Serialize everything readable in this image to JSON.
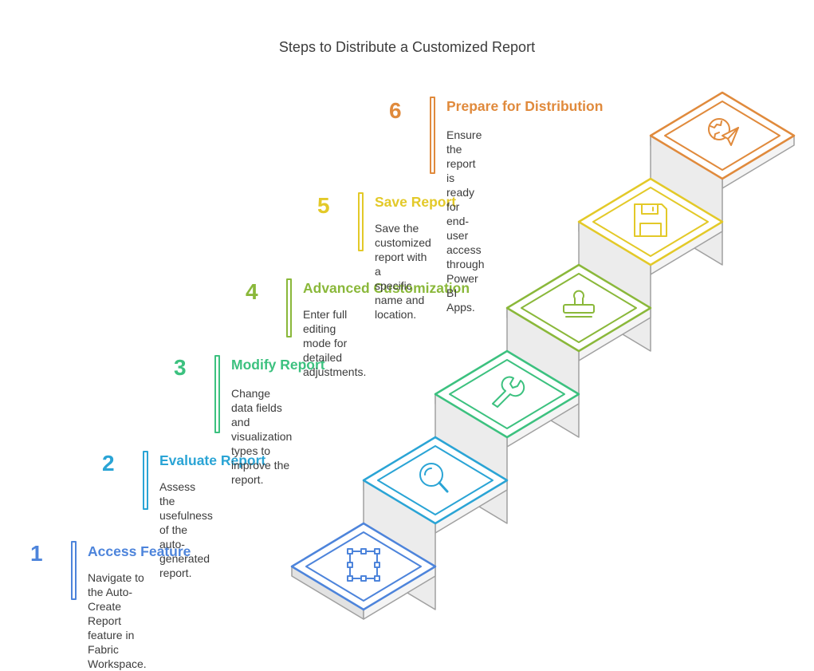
{
  "title": "Steps to Distribute a Customized Report",
  "steps": [
    {
      "number": "1",
      "title": "Access Feature",
      "lines": [
        "Navigate to the Auto-Create Report",
        "feature in Fabric Workspace."
      ],
      "color": "#4d84db",
      "icon": "selection-frame-icon"
    },
    {
      "number": "2",
      "title": "Evaluate Report",
      "lines": [
        "Assess the usefulness of the auto-",
        "generated report."
      ],
      "color": "#2aa4d5",
      "icon": "magnifier-icon"
    },
    {
      "number": "3",
      "title": "Modify Report",
      "lines": [
        "Change data fields and",
        "visualization types to improve the",
        "report."
      ],
      "color": "#3cc17f",
      "icon": "wrench-icon"
    },
    {
      "number": "4",
      "title": "Advanced Customization",
      "lines": [
        "Enter full editing mode for detailed",
        "adjustments."
      ],
      "color": "#8ab83a",
      "icon": "stamp-icon"
    },
    {
      "number": "5",
      "title": "Save Report",
      "lines": [
        "Save the customized report with a",
        "specific name and location."
      ],
      "color": "#e3c928",
      "icon": "floppy-disk-icon"
    },
    {
      "number": "6",
      "title": "Prepare for Distribution",
      "lines": [
        "Ensure the report is ready for end-",
        "user access through Power BI",
        "Apps."
      ],
      "color": "#e08a3c",
      "icon": "globe-send-icon"
    }
  ]
}
